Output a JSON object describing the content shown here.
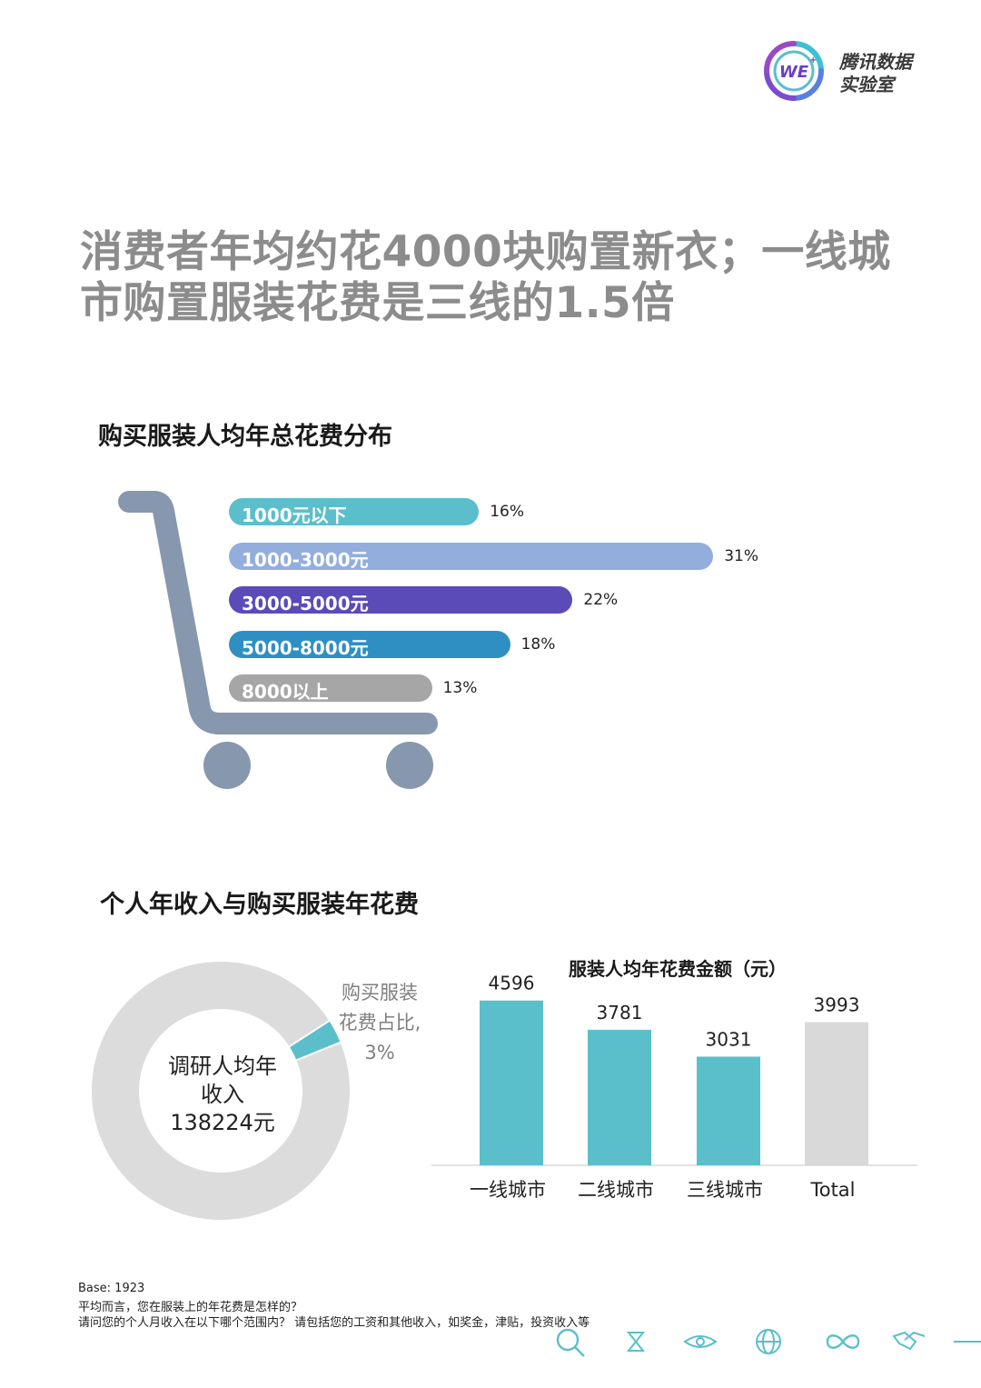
{
  "logo": {
    "badge": "WE",
    "brand_line1": "腾讯数据",
    "brand_line2": "实验室"
  },
  "headline": {
    "line1": "消费者年均约花4000块购置新衣；一线城",
    "line2": "市购置服装花费是三线的1.5倍"
  },
  "section1": {
    "title": "购买服装人均年总花费分布"
  },
  "section2": {
    "title": "个人年收入与购买服装年花费"
  },
  "chart_data": [
    {
      "type": "bar",
      "orientation": "horizontal",
      "title": "购买服装人均年总花费分布",
      "categories": [
        "1000元以下",
        "1000-3000元",
        "3000-5000元",
        "5000-8000元",
        "8000以上"
      ],
      "values": [
        16,
        31,
        22,
        18,
        13
      ],
      "value_labels": [
        "16%",
        "31%",
        "22%",
        "18%",
        "13%"
      ],
      "unit": "%",
      "colors": [
        "#5bbfcb",
        "#93aedd",
        "#5a4bb8",
        "#2f8fc2",
        "#a6a6a6"
      ]
    },
    {
      "type": "pie",
      "donut": true,
      "center_lines": [
        "调研人均年",
        "收入",
        "138224元"
      ],
      "slices": [
        {
          "name": "购买服装花费占比",
          "value": 3,
          "color": "#5bbfcb"
        },
        {
          "name": "",
          "value": 97,
          "color": "#dcdcdc"
        }
      ],
      "annotation_lines": [
        "购买服装",
        "花费占比,",
        "3%"
      ]
    },
    {
      "type": "bar",
      "title": "服装人均年花费金额（元）",
      "categories": [
        "一线城市",
        "二线城市",
        "三线城市",
        "Total"
      ],
      "values": [
        4596,
        3781,
        3031,
        3993
      ],
      "ylim": [
        0,
        5000
      ],
      "colors": [
        "#5bbfcb",
        "#5bbfcb",
        "#5bbfcb",
        "#d9d9d9"
      ]
    }
  ],
  "footer": {
    "base": "Base: 1923",
    "q1": "平均而言，您在服装上的年花费是怎样的？",
    "q2": "请问您的个人月收入在以下哪个范围内？ 请包括您的工资和其他收入，如奖金，津贴，投资收入等",
    "icons": [
      "search-icon",
      "hourglass-icon",
      "eye-icon",
      "globe-icon",
      "infinity-icon",
      "handshake-icon"
    ]
  },
  "colors": {
    "accent_teal": "#5bbfcb",
    "logo_purple": "#6a3fc6",
    "cart_gray": "#8797ae",
    "headline_gray": "#8c8c8c"
  }
}
